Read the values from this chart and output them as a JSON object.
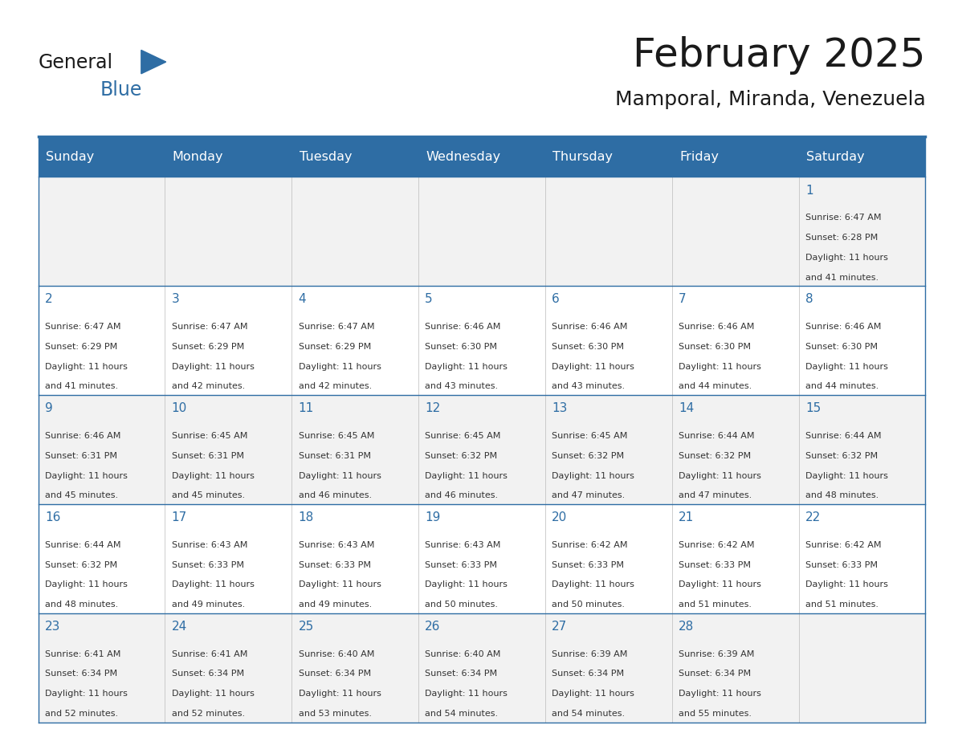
{
  "title": "February 2025",
  "subtitle": "Mamporal, Miranda, Venezuela",
  "header_bg": "#2E6DA4",
  "header_text_color": "#FFFFFF",
  "cell_bg_odd": "#F2F2F2",
  "cell_bg_even": "#FFFFFF",
  "border_color": "#2E6DA4",
  "day_number_color": "#2E6DA4",
  "cell_text_color": "#333333",
  "days_of_week": [
    "Sunday",
    "Monday",
    "Tuesday",
    "Wednesday",
    "Thursday",
    "Friday",
    "Saturday"
  ],
  "weeks": [
    [
      {
        "day": null,
        "sunrise": null,
        "sunset": null,
        "daylight": null
      },
      {
        "day": null,
        "sunrise": null,
        "sunset": null,
        "daylight": null
      },
      {
        "day": null,
        "sunrise": null,
        "sunset": null,
        "daylight": null
      },
      {
        "day": null,
        "sunrise": null,
        "sunset": null,
        "daylight": null
      },
      {
        "day": null,
        "sunrise": null,
        "sunset": null,
        "daylight": null
      },
      {
        "day": null,
        "sunrise": null,
        "sunset": null,
        "daylight": null
      },
      {
        "day": 1,
        "sunrise": "6:47 AM",
        "sunset": "6:28 PM",
        "daylight": "11 hours and 41 minutes."
      }
    ],
    [
      {
        "day": 2,
        "sunrise": "6:47 AM",
        "sunset": "6:29 PM",
        "daylight": "11 hours and 41 minutes."
      },
      {
        "day": 3,
        "sunrise": "6:47 AM",
        "sunset": "6:29 PM",
        "daylight": "11 hours and 42 minutes."
      },
      {
        "day": 4,
        "sunrise": "6:47 AM",
        "sunset": "6:29 PM",
        "daylight": "11 hours and 42 minutes."
      },
      {
        "day": 5,
        "sunrise": "6:46 AM",
        "sunset": "6:30 PM",
        "daylight": "11 hours and 43 minutes."
      },
      {
        "day": 6,
        "sunrise": "6:46 AM",
        "sunset": "6:30 PM",
        "daylight": "11 hours and 43 minutes."
      },
      {
        "day": 7,
        "sunrise": "6:46 AM",
        "sunset": "6:30 PM",
        "daylight": "11 hours and 44 minutes."
      },
      {
        "day": 8,
        "sunrise": "6:46 AM",
        "sunset": "6:30 PM",
        "daylight": "11 hours and 44 minutes."
      }
    ],
    [
      {
        "day": 9,
        "sunrise": "6:46 AM",
        "sunset": "6:31 PM",
        "daylight": "11 hours and 45 minutes."
      },
      {
        "day": 10,
        "sunrise": "6:45 AM",
        "sunset": "6:31 PM",
        "daylight": "11 hours and 45 minutes."
      },
      {
        "day": 11,
        "sunrise": "6:45 AM",
        "sunset": "6:31 PM",
        "daylight": "11 hours and 46 minutes."
      },
      {
        "day": 12,
        "sunrise": "6:45 AM",
        "sunset": "6:32 PM",
        "daylight": "11 hours and 46 minutes."
      },
      {
        "day": 13,
        "sunrise": "6:45 AM",
        "sunset": "6:32 PM",
        "daylight": "11 hours and 47 minutes."
      },
      {
        "day": 14,
        "sunrise": "6:44 AM",
        "sunset": "6:32 PM",
        "daylight": "11 hours and 47 minutes."
      },
      {
        "day": 15,
        "sunrise": "6:44 AM",
        "sunset": "6:32 PM",
        "daylight": "11 hours and 48 minutes."
      }
    ],
    [
      {
        "day": 16,
        "sunrise": "6:44 AM",
        "sunset": "6:32 PM",
        "daylight": "11 hours and 48 minutes."
      },
      {
        "day": 17,
        "sunrise": "6:43 AM",
        "sunset": "6:33 PM",
        "daylight": "11 hours and 49 minutes."
      },
      {
        "day": 18,
        "sunrise": "6:43 AM",
        "sunset": "6:33 PM",
        "daylight": "11 hours and 49 minutes."
      },
      {
        "day": 19,
        "sunrise": "6:43 AM",
        "sunset": "6:33 PM",
        "daylight": "11 hours and 50 minutes."
      },
      {
        "day": 20,
        "sunrise": "6:42 AM",
        "sunset": "6:33 PM",
        "daylight": "11 hours and 50 minutes."
      },
      {
        "day": 21,
        "sunrise": "6:42 AM",
        "sunset": "6:33 PM",
        "daylight": "11 hours and 51 minutes."
      },
      {
        "day": 22,
        "sunrise": "6:42 AM",
        "sunset": "6:33 PM",
        "daylight": "11 hours and 51 minutes."
      }
    ],
    [
      {
        "day": 23,
        "sunrise": "6:41 AM",
        "sunset": "6:34 PM",
        "daylight": "11 hours and 52 minutes."
      },
      {
        "day": 24,
        "sunrise": "6:41 AM",
        "sunset": "6:34 PM",
        "daylight": "11 hours and 52 minutes."
      },
      {
        "day": 25,
        "sunrise": "6:40 AM",
        "sunset": "6:34 PM",
        "daylight": "11 hours and 53 minutes."
      },
      {
        "day": 26,
        "sunrise": "6:40 AM",
        "sunset": "6:34 PM",
        "daylight": "11 hours and 54 minutes."
      },
      {
        "day": 27,
        "sunrise": "6:39 AM",
        "sunset": "6:34 PM",
        "daylight": "11 hours and 54 minutes."
      },
      {
        "day": 28,
        "sunrise": "6:39 AM",
        "sunset": "6:34 PM",
        "daylight": "11 hours and 55 minutes."
      },
      {
        "day": null,
        "sunrise": null,
        "sunset": null,
        "daylight": null
      }
    ]
  ]
}
